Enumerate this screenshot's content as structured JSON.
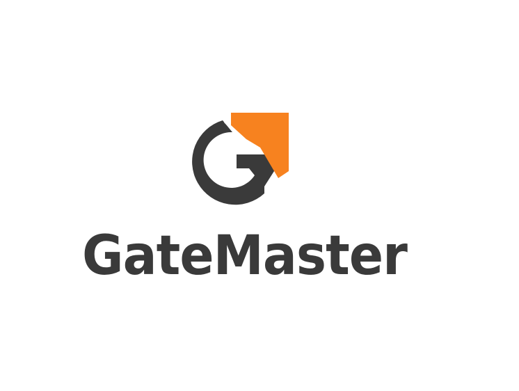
{
  "brand": {
    "name": "GateMaster",
    "colors": {
      "dark": "#3a3a3a",
      "accent": "#f7821f",
      "background": "#ffffff"
    },
    "mark_icon": "g-arrow-logo-icon"
  }
}
